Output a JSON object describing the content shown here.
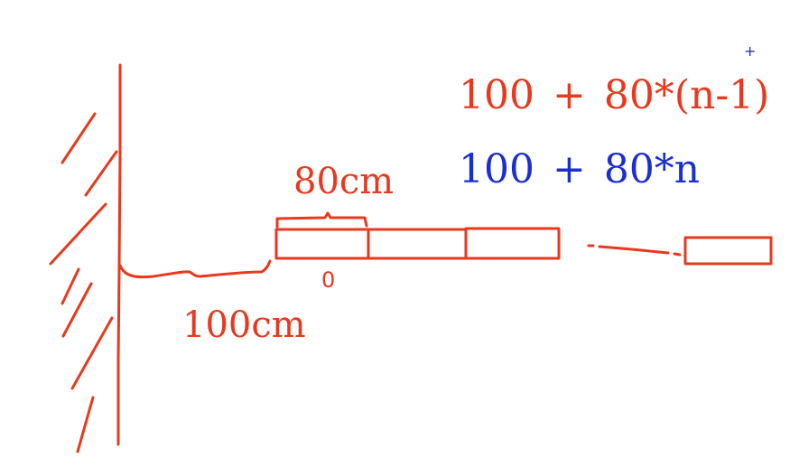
{
  "colors": {
    "ink_red": "#e8391e",
    "ink_blue": "#1b2fd0",
    "background": "#ffffff"
  },
  "labels": {
    "wall_gap": "100cm",
    "tile_width": "80cm",
    "first_tile_mark": "0"
  },
  "formulas": {
    "red": "100 + 80*(n-1)",
    "blue": "100 + 80*n",
    "blue_mark": "+"
  }
}
